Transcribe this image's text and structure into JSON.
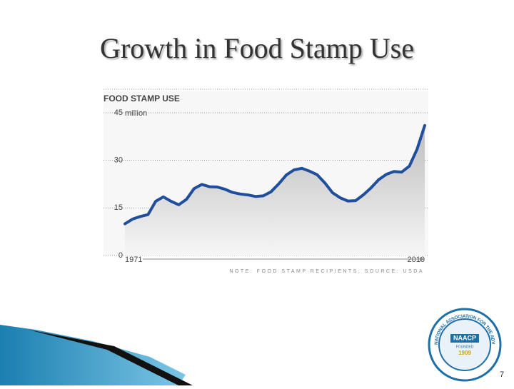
{
  "slide_title": "Growth in Food Stamp Use",
  "page_number": "7",
  "logo": {
    "ring_text": "NATIONAL ASSOCIATION FOR THE ADVANCEMENT OF COLORED PEOPLE",
    "name": "NAACP",
    "founded": "FOUNDED",
    "year": "1909"
  },
  "chart_data": {
    "type": "line",
    "title": "FOOD STAMP USE",
    "y_unit": "million",
    "note": "NOTE: FOOD STAMP RECIPIENTS; SOURCE: USDA",
    "x": [
      1971,
      1972,
      1973,
      1974,
      1975,
      1976,
      1977,
      1978,
      1979,
      1980,
      1981,
      1982,
      1983,
      1984,
      1985,
      1986,
      1987,
      1988,
      1989,
      1990,
      1991,
      1992,
      1993,
      1994,
      1995,
      1996,
      1997,
      1998,
      1999,
      2000,
      2001,
      2002,
      2003,
      2004,
      2005,
      2006,
      2007,
      2008,
      2009,
      2010
    ],
    "values": [
      10.0,
      11.5,
      12.3,
      12.9,
      17.1,
      18.5,
      17.1,
      16.0,
      17.7,
      21.1,
      22.4,
      21.7,
      21.6,
      20.9,
      19.9,
      19.4,
      19.1,
      18.6,
      18.8,
      20.1,
      22.6,
      25.4,
      27.0,
      27.5,
      26.6,
      25.5,
      22.9,
      19.8,
      18.2,
      17.2,
      17.3,
      19.1,
      21.3,
      23.9,
      25.6,
      26.5,
      26.3,
      28.2,
      33.5,
      41.0
    ],
    "color": "#1f4f9c",
    "xlim": [
      1971,
      2010
    ],
    "xticks": [
      1971,
      2010
    ],
    "ylim": [
      0,
      45
    ],
    "yticks": [
      0,
      15,
      30,
      45
    ],
    "grid": true
  }
}
